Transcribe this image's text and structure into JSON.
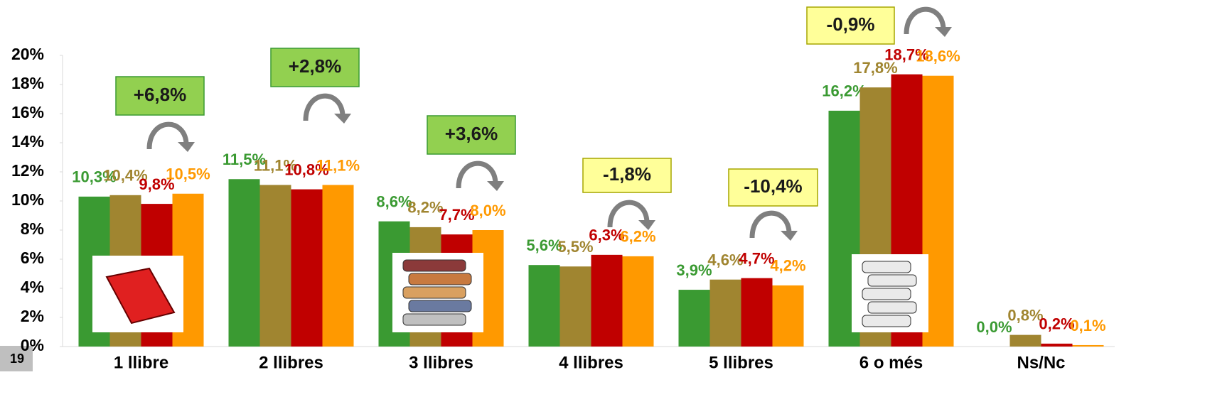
{
  "page_number": "19",
  "chart_data": {
    "type": "bar",
    "categories": [
      "1 llibre",
      "2 llibres",
      "3 llibres",
      "4 llibres",
      "5 llibres",
      "6 o més",
      "Ns/Nc"
    ],
    "series": [
      {
        "color": "#3a9a32",
        "values": [
          10.3,
          11.5,
          8.6,
          5.6,
          3.9,
          16.2,
          0.0
        ],
        "value_labels": [
          "10,3%",
          "11,5%",
          "8,6%",
          "5,6%",
          "3,9%",
          "16,2%",
          "0,0%"
        ]
      },
      {
        "color": "#a08530",
        "values": [
          10.4,
          11.1,
          8.2,
          5.5,
          4.6,
          17.8,
          0.8
        ],
        "value_labels": [
          "10,4%",
          "11,1%",
          "8,2%",
          "5,5%",
          "4,6%",
          "17,8%",
          "0,8%"
        ]
      },
      {
        "color": "#c00000",
        "values": [
          9.8,
          10.8,
          7.7,
          6.3,
          4.7,
          18.7,
          0.2
        ],
        "value_labels": [
          "9,8%",
          "10,8%",
          "7,7%",
          "6,3%",
          "4,7%",
          "18,7%",
          "0,2%"
        ]
      },
      {
        "color": "#ff9900",
        "values": [
          10.5,
          11.1,
          8.0,
          6.2,
          4.2,
          18.6,
          0.1
        ],
        "value_labels": [
          "10,5%",
          "11,1%",
          "8,0%",
          "6,2%",
          "4,2%",
          "18,6%",
          "0,1%"
        ]
      }
    ],
    "ylim": [
      0,
      20
    ],
    "yticks": [
      {
        "value": 0,
        "label": "0%"
      },
      {
        "value": 2,
        "label": "2%"
      },
      {
        "value": 4,
        "label": "4%"
      },
      {
        "value": 6,
        "label": "6%"
      },
      {
        "value": 8,
        "label": "8%"
      },
      {
        "value": 10,
        "label": "10%"
      },
      {
        "value": 12,
        "label": "12%"
      },
      {
        "value": 14,
        "label": "14%"
      },
      {
        "value": 16,
        "label": "16%"
      },
      {
        "value": 18,
        "label": "18%"
      },
      {
        "value": 20,
        "label": "20%"
      }
    ],
    "annotations": [
      {
        "text": "+6,8%",
        "color": "#92d050"
      },
      {
        "text": "+2,8%",
        "color": "#92d050"
      },
      {
        "text": "+3,6%",
        "color": "#92d050"
      },
      {
        "text": "-1,8%",
        "color": "#ffff99"
      },
      {
        "text": "-10,4%",
        "color": "#ffff99"
      },
      {
        "text": "-0,9%",
        "color": "#ffff99"
      }
    ]
  }
}
